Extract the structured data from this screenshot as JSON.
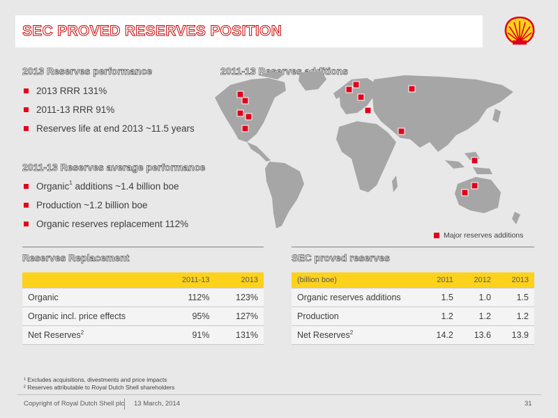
{
  "header": {
    "title": "SEC PROVED RESERVES POSITION"
  },
  "performance_2013": {
    "heading": "2013 Reserves performance",
    "items": [
      "2013 RRR 131%",
      "2011-13 RRR 91%",
      "Reserves life at end 2013 ~11.5 years"
    ]
  },
  "performance_avg": {
    "heading": "2011-13 Reserves average performance",
    "items": [
      {
        "pre": "Organic",
        "sup": "1",
        "post": " additions  ~1.4 billion boe"
      },
      {
        "pre": "Production ~1.2 billion boe",
        "sup": "",
        "post": ""
      },
      {
        "pre": "Organic reserves replacement 112%",
        "sup": "",
        "post": ""
      }
    ]
  },
  "map": {
    "heading": "2011-13 Reserves additions",
    "legend": "Major reserves additions",
    "marker_color": "#e2001a"
  },
  "replacement": {
    "heading": "Reserves Replacement",
    "columns": [
      "",
      "2011-13",
      "2013"
    ],
    "rows": [
      {
        "label": "Organic",
        "sup": "",
        "v1": "112%",
        "v2": "123%"
      },
      {
        "label": "Organic incl. price effects",
        "sup": "",
        "v1": "95%",
        "v2": "127%"
      },
      {
        "label": "Net Reserves",
        "sup": "2",
        "v1": "91%",
        "v2": "131%"
      }
    ]
  },
  "proved": {
    "heading": "SEC proved reserves",
    "columns": [
      "(billion boe)",
      "2011",
      "2012",
      "2013"
    ],
    "rows": [
      {
        "label": "Organic reserves additions",
        "sup": "",
        "v1": "1.5",
        "v2": "1.0",
        "v3": "1.5"
      },
      {
        "label": "Production",
        "sup": "",
        "v1": "1.2",
        "v2": "1.2",
        "v3": "1.2"
      },
      {
        "label": "Net Reserves",
        "sup": "2",
        "v1": "14.2",
        "v2": "13.6",
        "v3": "13.9"
      }
    ]
  },
  "footnotes": {
    "n1": "¹ Excludes acquisitions, divestments and price impacts",
    "n2": "² Reserves attributable to Royal Dutch Shell shareholders"
  },
  "footer": {
    "copyright": "Copyright of Royal Dutch Shell plc",
    "date": "13  March, 2014",
    "page": "31"
  },
  "colors": {
    "accent_red": "#e2001a",
    "table_header_yellow": "#fcd21c",
    "background": "#e8e8e8"
  }
}
